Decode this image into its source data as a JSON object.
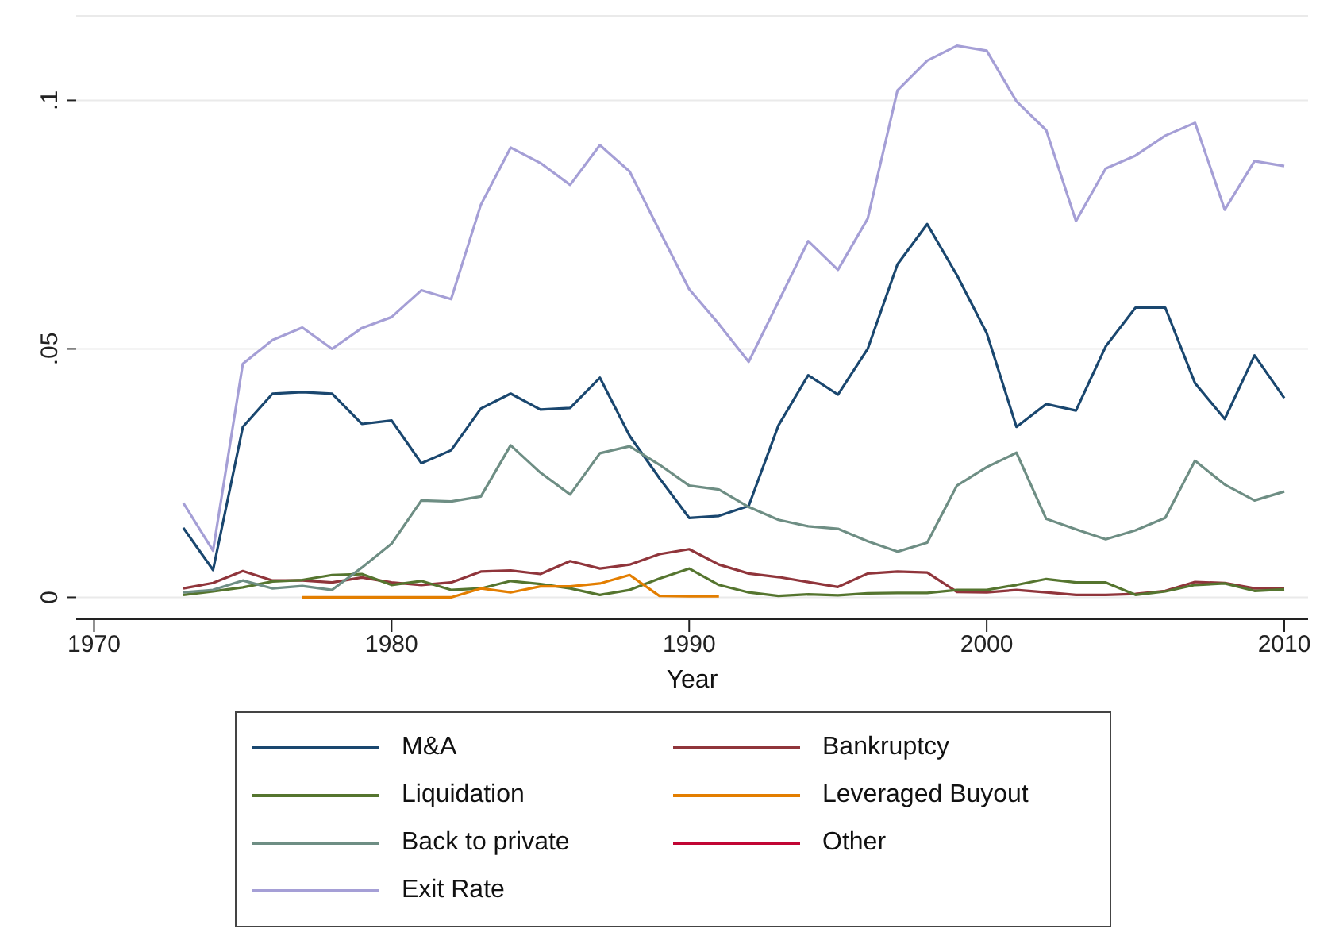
{
  "chart_data": {
    "type": "line",
    "xlabel": "Year",
    "x": [
      1973,
      1974,
      1975,
      1976,
      1977,
      1978,
      1979,
      1980,
      1981,
      1982,
      1983,
      1984,
      1985,
      1986,
      1987,
      1988,
      1989,
      1990,
      1991,
      1992,
      1993,
      1994,
      1995,
      1996,
      1997,
      1998,
      1999,
      2000,
      2001,
      2002,
      2003,
      2004,
      2005,
      2006,
      2007,
      2008,
      2009,
      2010
    ],
    "xlim": [
      1969.4,
      2010.8
    ],
    "xticks": [
      1970,
      1980,
      1990,
      2000,
      2010
    ],
    "ylim": [
      -0.0044,
      0.117
    ],
    "yticks": [
      0,
      {
        "value": 0.05,
        "label": ".05"
      },
      {
        "value": 0.1,
        "label": ".1"
      }
    ],
    "grid": "y",
    "legend": "bottom",
    "series": [
      {
        "name": "M&A",
        "color": "#1a476f",
        "values": [
          0.014,
          0.0055,
          0.0343,
          0.041,
          0.0413,
          0.041,
          0.0349,
          0.0356,
          0.027,
          0.0296,
          0.038,
          0.041,
          0.0378,
          0.0381,
          0.0442,
          0.0325,
          0.024,
          0.016,
          0.0164,
          0.0184,
          0.0346,
          0.0447,
          0.0408,
          0.05,
          0.067,
          0.0751,
          0.0648,
          0.0532,
          0.0343,
          0.0389,
          0.0376,
          0.0505,
          0.0583,
          0.0583,
          0.0431,
          0.0359,
          0.0487,
          0.0401
        ]
      },
      {
        "name": "Bankruptcy",
        "color": "#90353b",
        "values": [
          0.0018,
          0.0029,
          0.0053,
          0.0034,
          0.0034,
          0.003,
          0.004,
          0.003,
          0.0025,
          0.003,
          0.0052,
          0.0054,
          0.0047,
          0.0073,
          0.0058,
          0.0066,
          0.0087,
          0.0097,
          0.0066,
          0.0048,
          0.0041,
          0.0031,
          0.0021,
          0.0048,
          0.0052,
          0.005,
          0.0011,
          0.001,
          0.0015,
          0.001,
          0.0005,
          0.0005,
          0.0007,
          0.0013,
          0.0031,
          0.0029,
          0.0018,
          0.0018
        ]
      },
      {
        "name": "Liquidation",
        "color": "#55752f",
        "values": [
          0.0005,
          0.0012,
          0.002,
          0.0032,
          0.0035,
          0.0045,
          0.0047,
          0.0025,
          0.0033,
          0.0015,
          0.0018,
          0.0033,
          0.0027,
          0.0018,
          0.0005,
          0.0015,
          0.0038,
          0.0058,
          0.0025,
          0.001,
          0.0003,
          0.0006,
          0.0004,
          0.0008,
          0.0009,
          0.0009,
          0.0015,
          0.0015,
          0.0025,
          0.0037,
          0.003,
          0.003,
          0.0005,
          0.0012,
          0.0025,
          0.0028,
          0.0013,
          0.0016
        ]
      },
      {
        "name": "Leveraged Buyout",
        "color": "#e37e00",
        "values": [
          null,
          null,
          null,
          null,
          0,
          0,
          0,
          0,
          0,
          0,
          0.0018,
          0.001,
          0.0022,
          0.0022,
          0.0028,
          0.0045,
          0.0003,
          0.0002,
          0.0002,
          null,
          null,
          null,
          null,
          null,
          null,
          null,
          null,
          null,
          null,
          null,
          null,
          null,
          null,
          null,
          null,
          null,
          null,
          null
        ]
      },
      {
        "name": "Back to private",
        "color": "#6e8e84",
        "values": [
          0.001,
          0.0015,
          0.0034,
          0.0018,
          0.0023,
          0.0015,
          0.006,
          0.0108,
          0.0195,
          0.0193,
          0.0203,
          0.0306,
          0.0251,
          0.0207,
          0.029,
          0.0304,
          0.0267,
          0.0225,
          0.0217,
          0.0182,
          0.0156,
          0.0143,
          0.0138,
          0.0113,
          0.0092,
          0.011,
          0.0225,
          0.0262,
          0.0291,
          0.0158,
          0.0137,
          0.0117,
          0.0135,
          0.016,
          0.0275,
          0.0227,
          0.0195,
          0.0213
        ]
      },
      {
        "name": "Other",
        "color": "#c10534",
        "values": [
          null,
          null,
          null,
          null,
          null,
          null,
          null,
          null,
          null,
          null,
          null,
          null,
          null,
          null,
          null,
          null,
          null,
          null,
          null,
          null,
          null,
          null,
          null,
          null,
          null,
          null,
          null,
          null,
          null,
          null,
          null,
          null,
          null,
          null,
          null,
          null,
          null,
          null
        ]
      },
      {
        "name": "Exit Rate",
        "color": "#a59fd6",
        "values": [
          0.019,
          0.0094,
          0.047,
          0.0518,
          0.0543,
          0.05,
          0.0542,
          0.0564,
          0.0618,
          0.06,
          0.079,
          0.0905,
          0.0874,
          0.083,
          0.091,
          0.0857,
          0.0738,
          0.062,
          0.055,
          0.0474,
          0.0595,
          0.0717,
          0.0659,
          0.0762,
          0.102,
          0.108,
          0.111,
          0.11,
          0.0998,
          0.094,
          0.0757,
          0.0863,
          0.0889,
          0.0929,
          0.0955,
          0.078,
          0.0878,
          0.0868
        ]
      }
    ]
  }
}
